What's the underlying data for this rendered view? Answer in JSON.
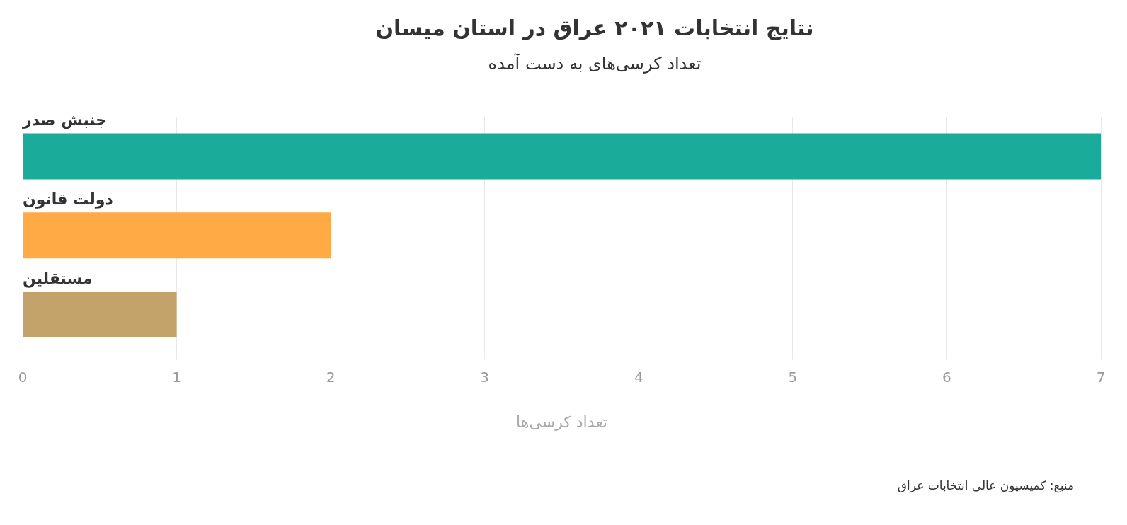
{
  "chart_data": {
    "type": "bar",
    "orientation": "horizontal",
    "title": "نتایج انتخابات ۲۰۲۱ عراق در استان میسان",
    "subtitle": "تعداد کرسی‌های به دست آمده",
    "xlabel": "تعداد کرسی‌ها",
    "categories": [
      "جنبش صدر",
      "دولت قانون",
      "مستقلین"
    ],
    "values": [
      7,
      2,
      1
    ],
    "colors": [
      "#1aab9b",
      "#ffaa45",
      "#c4a36b"
    ],
    "xlim": [
      0,
      7
    ],
    "xticks": [
      0,
      1,
      2,
      3,
      4,
      5,
      6,
      7
    ],
    "grid": "x",
    "annotations": [
      "منبع: کمیسیون عالی انتخابات عراق"
    ]
  }
}
